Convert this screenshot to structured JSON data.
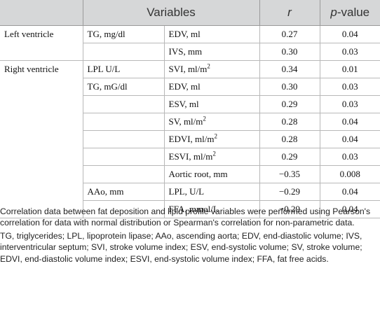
{
  "header": {
    "variables": "Variables",
    "r": "r",
    "p_value_prefix": "p",
    "p_value_suffix": "-value"
  },
  "rows": [
    {
      "group": "Left ventricle",
      "predictor": "TG, mg/dl",
      "variable": "EDV, ml",
      "sup": "",
      "r": "0.27",
      "p": "0.04"
    },
    {
      "group": "",
      "predictor": "",
      "variable": "IVS, mm",
      "sup": "",
      "r": "0.30",
      "p": "0.03"
    },
    {
      "group": "Right ventricle",
      "predictor": "LPL U/L",
      "variable": "SVI, ml/m",
      "sup": "2",
      "r": "0.34",
      "p": "0.01"
    },
    {
      "group": "",
      "predictor": "TG, mG/dl",
      "variable": "EDV, ml",
      "sup": "",
      "r": "0.30",
      "p": "0.03"
    },
    {
      "group": "",
      "predictor": "",
      "variable": "ESV, ml",
      "sup": "",
      "r": "0.29",
      "p": "0.03"
    },
    {
      "group": "",
      "predictor": "",
      "variable": "SV, ml/m",
      "sup": "2",
      "r": "0.28",
      "p": "0.04"
    },
    {
      "group": "",
      "predictor": "",
      "variable": "EDVI, ml/m",
      "sup": "2",
      "r": "0.28",
      "p": "0.04"
    },
    {
      "group": "",
      "predictor": "",
      "variable": "ESVI, ml/m",
      "sup": "2",
      "r": "0.29",
      "p": "0.03"
    },
    {
      "group": "",
      "predictor": "",
      "variable": "Aortic root, mm",
      "sup": "",
      "r": "−0.35",
      "p": "0.008"
    },
    {
      "group": "",
      "predictor": "AAo, mm",
      "variable": "LPL, U/L",
      "sup": "",
      "r": "−0.29",
      "p": "0.04"
    },
    {
      "group": "",
      "predictor": "",
      "variable": "FFA, mmol/L",
      "sup": "",
      "r": "−0.29",
      "p": "0.04"
    }
  ],
  "footer": {
    "note": "Correlation data between fat deposition and lipid profile variables were performed using Pearson's correlation for data with normal distribution or Spearman's correlation for non-parametric data.",
    "abbreviations": "TG, triglycerides; LPL, lipoprotein lipase; AAo, ascending aorta; EDV, end-diastolic volume; IVS, interventricular septum; SVI, stroke volume index; ESV, end-systolic volume; SV, stroke volume; EDVI, end-diastolic volume index; ESVI, end-systolic volume index; FFA, fat free acids."
  }
}
